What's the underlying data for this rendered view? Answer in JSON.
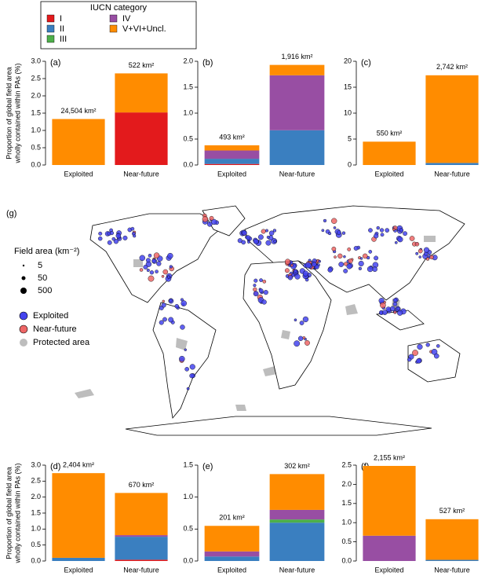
{
  "chart_data": [
    {
      "type": "bar",
      "title": "(a)",
      "legend_title": "IUCN category",
      "ylabel": [
        "Proportion of global field area",
        "wholly contained within PAs (%)"
      ],
      "categories": [
        "Exploited",
        "Near-future"
      ],
      "annotations": [
        "24,504 km²",
        "522 km²"
      ],
      "series": [
        {
          "name": "I",
          "color": "#e31a1c",
          "values": [
            0,
            1.52
          ]
        },
        {
          "name": "II",
          "color": "#3a7fc0",
          "values": [
            0,
            0
          ]
        },
        {
          "name": "III",
          "color": "#4daf4a",
          "values": [
            0,
            0
          ]
        },
        {
          "name": "IV",
          "color": "#984ea3",
          "values": [
            0,
            0
          ]
        },
        {
          "name": "V+VI+Uncl.",
          "color": "#ff8c00",
          "values": [
            1.33,
            1.13
          ]
        }
      ],
      "ylim": [
        0,
        3
      ],
      "yticks": [
        {
          "value": 0,
          "label": "0.0"
        },
        {
          "value": 0.5,
          "label": "0.5"
        },
        {
          "value": 1,
          "label": "1.0"
        },
        {
          "value": 1.5,
          "label": "1.5"
        },
        {
          "value": 2,
          "label": "2.0"
        },
        {
          "value": 2.5,
          "label": "2.5"
        },
        {
          "value": 3,
          "label": "3.0"
        }
      ]
    },
    {
      "type": "bar",
      "title": "(b)",
      "categories": [
        "Exploited",
        "Near-future"
      ],
      "annotations": [
        "493 km²",
        "1,916 km²"
      ],
      "series": [
        {
          "name": "I",
          "color": "#e31a1c",
          "values": [
            0.02,
            0
          ]
        },
        {
          "name": "II",
          "color": "#3a7fc0",
          "values": [
            0.1,
            0.67
          ]
        },
        {
          "name": "III",
          "color": "#4daf4a",
          "values": [
            0,
            0
          ]
        },
        {
          "name": "IV",
          "color": "#984ea3",
          "values": [
            0.16,
            1.06
          ]
        },
        {
          "name": "V+VI+Uncl.",
          "color": "#ff8c00",
          "values": [
            0.1,
            0.2
          ]
        }
      ],
      "ylim": [
        0,
        2
      ],
      "yticks": [
        {
          "value": 0,
          "label": "0.0"
        },
        {
          "value": 0.5,
          "label": "0.5"
        },
        {
          "value": 1,
          "label": "1.0"
        },
        {
          "value": 1.5,
          "label": "1.5"
        },
        {
          "value": 2,
          "label": "2.0"
        }
      ]
    },
    {
      "type": "bar",
      "title": "(c)",
      "categories": [
        "Exploited",
        "Near-future"
      ],
      "annotations": [
        "550 km²",
        "2,742 km²"
      ],
      "series": [
        {
          "name": "I",
          "color": "#e31a1c",
          "values": [
            0,
            0
          ]
        },
        {
          "name": "II",
          "color": "#3a7fc0",
          "values": [
            0,
            0.4
          ]
        },
        {
          "name": "III",
          "color": "#4daf4a",
          "values": [
            0,
            0
          ]
        },
        {
          "name": "IV",
          "color": "#984ea3",
          "values": [
            0,
            0
          ]
        },
        {
          "name": "V+VI+Uncl.",
          "color": "#ff8c00",
          "values": [
            4.5,
            16.9
          ]
        }
      ],
      "ylim": [
        0,
        20
      ],
      "yticks": [
        0,
        5,
        10,
        15,
        20
      ]
    },
    {
      "type": "bar",
      "title": "(d)",
      "ylabel": [
        "Proportion of global field area",
        "wholly contained within PAs (%)"
      ],
      "categories": [
        "Exploited",
        "Near-future"
      ],
      "annotations": [
        "2,404 km²",
        "670 km²"
      ],
      "series": [
        {
          "name": "I",
          "color": "#e31a1c",
          "values": [
            0,
            0.04
          ]
        },
        {
          "name": "II",
          "color": "#3a7fc0",
          "values": [
            0.1,
            0.72
          ]
        },
        {
          "name": "III",
          "color": "#4daf4a",
          "values": [
            0,
            0
          ]
        },
        {
          "name": "IV",
          "color": "#984ea3",
          "values": [
            0,
            0.05
          ]
        },
        {
          "name": "V+VI+Uncl.",
          "color": "#ff8c00",
          "values": [
            2.65,
            1.32
          ]
        }
      ],
      "ylim": [
        0,
        3
      ],
      "yticks": [
        {
          "value": 0,
          "label": "0.0"
        },
        {
          "value": 0.5,
          "label": "0.5"
        },
        {
          "value": 1,
          "label": "1.0"
        },
        {
          "value": 1.5,
          "label": "1.5"
        },
        {
          "value": 2,
          "label": "2.0"
        },
        {
          "value": 2.5,
          "label": "2.5"
        },
        {
          "value": 3,
          "label": "3.0"
        }
      ]
    },
    {
      "type": "bar",
      "title": "(e)",
      "categories": [
        "Exploited",
        "Near-future"
      ],
      "annotations": [
        "201 km²",
        "302 km²"
      ],
      "series": [
        {
          "name": "I",
          "color": "#e31a1c",
          "values": [
            0,
            0
          ]
        },
        {
          "name": "II",
          "color": "#3a7fc0",
          "values": [
            0.07,
            0.6
          ]
        },
        {
          "name": "III",
          "color": "#4daf4a",
          "values": [
            0,
            0.05
          ]
        },
        {
          "name": "IV",
          "color": "#984ea3",
          "values": [
            0.08,
            0.15
          ]
        },
        {
          "name": "V+VI+Uncl.",
          "color": "#ff8c00",
          "values": [
            0.4,
            0.56
          ]
        }
      ],
      "ylim": [
        0,
        1.5
      ],
      "yticks": [
        {
          "value": 0,
          "label": "0.0"
        },
        {
          "value": 0.5,
          "label": "0.5"
        },
        {
          "value": 1,
          "label": "1.0"
        },
        {
          "value": 1.5,
          "label": "1.5"
        }
      ]
    },
    {
      "type": "bar",
      "title": "(f)",
      "categories": [
        "Exploited",
        "Near-future"
      ],
      "annotations": [
        "2,155 km²",
        "527 km²"
      ],
      "series": [
        {
          "name": "I",
          "color": "#e31a1c",
          "values": [
            0,
            0
          ]
        },
        {
          "name": "II",
          "color": "#3a7fc0",
          "values": [
            0,
            0.03
          ]
        },
        {
          "name": "III",
          "color": "#4daf4a",
          "values": [
            0,
            0
          ]
        },
        {
          "name": "IV",
          "color": "#984ea3",
          "values": [
            0.66,
            0
          ]
        },
        {
          "name": "V+VI+Uncl.",
          "color": "#ff8c00",
          "values": [
            1.82,
            1.06
          ]
        }
      ],
      "ylim": [
        0,
        2.5
      ],
      "yticks": [
        {
          "value": 0,
          "label": "0.0"
        },
        {
          "value": 0.5,
          "label": "0.5"
        },
        {
          "value": 1,
          "label": "1.0"
        },
        {
          "value": 1.5,
          "label": "1.5"
        },
        {
          "value": 2,
          "label": "2.0"
        },
        {
          "value": 2.5,
          "label": "2.5"
        }
      ]
    }
  ],
  "map": {
    "title": "(g)",
    "size_legend_title": "Field area (km⁻²)",
    "size_labels": [
      "5",
      "50",
      "500"
    ],
    "legend": [
      "Exploited",
      "Near-future",
      "Protected area"
    ]
  }
}
